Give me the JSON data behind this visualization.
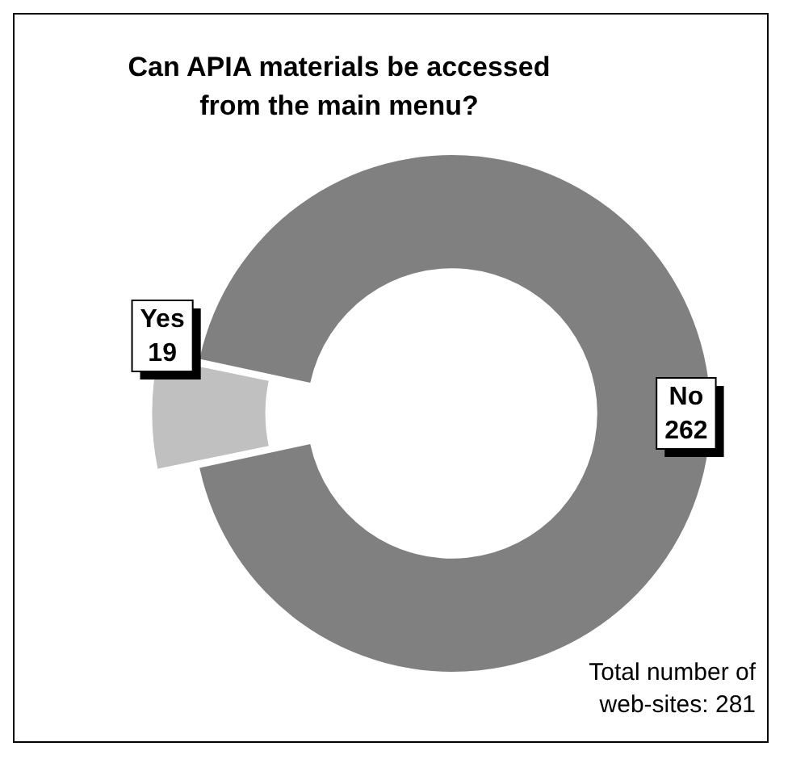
{
  "chart_data": {
    "type": "donut",
    "title": "Can APIA materials be accessed from the main menu?",
    "categories": [
      "Yes",
      "No"
    ],
    "values": [
      19,
      262
    ],
    "colors": [
      "#c0c0c0",
      "#808080"
    ],
    "data_labels": true,
    "legend": false,
    "annotations": [
      "Total number of web-sites: 281"
    ]
  }
}
